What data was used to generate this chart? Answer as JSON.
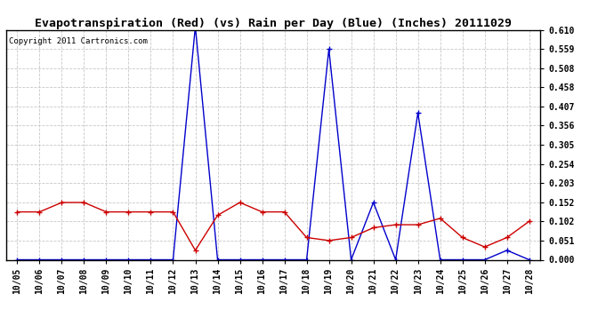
{
  "title": "Evapotranspiration (Red) (vs) Rain per Day (Blue) (Inches) 20111029",
  "copyright": "Copyright 2011 Cartronics.com",
  "x_labels": [
    "10/05",
    "10/06",
    "10/07",
    "10/08",
    "10/09",
    "10/10",
    "10/11",
    "10/12",
    "10/13",
    "10/14",
    "10/15",
    "10/16",
    "10/17",
    "10/18",
    "10/19",
    "10/20",
    "10/21",
    "10/22",
    "10/23",
    "10/24",
    "10/25",
    "10/26",
    "10/27",
    "10/28"
  ],
  "red_data": [
    0.127,
    0.127,
    0.152,
    0.152,
    0.127,
    0.127,
    0.127,
    0.127,
    0.025,
    0.118,
    0.152,
    0.127,
    0.127,
    0.059,
    0.051,
    0.059,
    0.085,
    0.093,
    0.093,
    0.11,
    0.059,
    0.034,
    0.059,
    0.102
  ],
  "blue_data": [
    0.0,
    0.0,
    0.0,
    0.0,
    0.0,
    0.0,
    0.0,
    0.0,
    0.619,
    0.0,
    0.0,
    0.0,
    0.0,
    0.0,
    0.559,
    0.0,
    0.152,
    0.0,
    0.39,
    0.0,
    0.0,
    0.0,
    0.025,
    0.0
  ],
  "ylim": [
    0.0,
    0.61
  ],
  "yticks": [
    0.0,
    0.051,
    0.102,
    0.152,
    0.203,
    0.254,
    0.305,
    0.356,
    0.407,
    0.458,
    0.508,
    0.559,
    0.61
  ],
  "background_color": "#ffffff",
  "plot_bg_color": "#ffffff",
  "grid_color": "#c8c8c8",
  "red_color": "#cc0000",
  "blue_color": "#0000cc",
  "title_fontsize": 9.5,
  "tick_fontsize": 7,
  "copyright_fontsize": 6.5
}
